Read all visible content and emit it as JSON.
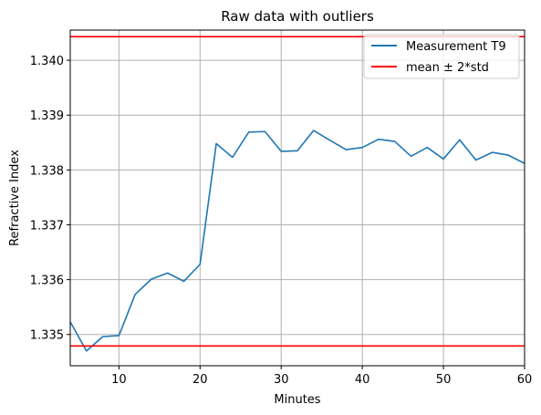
{
  "chart_data": {
    "type": "line",
    "title": "Raw data with outliers",
    "xlabel": "Minutes",
    "ylabel": "Refractive Index",
    "xlim": [
      4,
      60
    ],
    "ylim": [
      1.33443,
      1.34055
    ],
    "grid": true,
    "legend_position": "top-right",
    "x_ticks": [
      10,
      20,
      30,
      40,
      50,
      60
    ],
    "x_tick_labels": [
      "10",
      "20",
      "30",
      "40",
      "50",
      "60"
    ],
    "y_ticks": [
      1.335,
      1.336,
      1.337,
      1.338,
      1.339,
      1.34
    ],
    "y_tick_labels": [
      "1.335",
      "1.336",
      "1.337",
      "1.338",
      "1.339",
      "1.340"
    ],
    "series": [
      {
        "name": "Measurement T9",
        "color": "#1f77b4",
        "x": [
          4,
          6,
          8,
          10,
          12,
          14,
          16,
          18,
          20,
          22,
          24,
          26,
          28,
          30,
          32,
          34,
          36,
          38,
          40,
          42,
          44,
          46,
          48,
          50,
          52,
          54,
          56,
          58,
          60
        ],
        "y": [
          1.33523,
          1.3347,
          1.33496,
          1.33498,
          1.33573,
          1.33601,
          1.33612,
          1.33597,
          1.33628,
          1.33848,
          1.33823,
          1.33869,
          1.3387,
          1.33834,
          1.33835,
          1.33872,
          1.33854,
          1.33837,
          1.33841,
          1.33856,
          1.33852,
          1.33825,
          1.33841,
          1.3382,
          1.33855,
          1.33818,
          1.33832,
          1.33827,
          1.33812
        ]
      }
    ],
    "reference_lines": [
      {
        "name": "mean ± 2*std",
        "color": "#ff0000",
        "y": 1.34043
      },
      {
        "name": "mean ± 2*std",
        "color": "#ff0000",
        "y": 1.33479
      }
    ],
    "legend": [
      {
        "label": "Measurement T9",
        "color": "#1f77b4"
      },
      {
        "label": "mean ± 2*std",
        "color": "#ff0000"
      }
    ]
  }
}
